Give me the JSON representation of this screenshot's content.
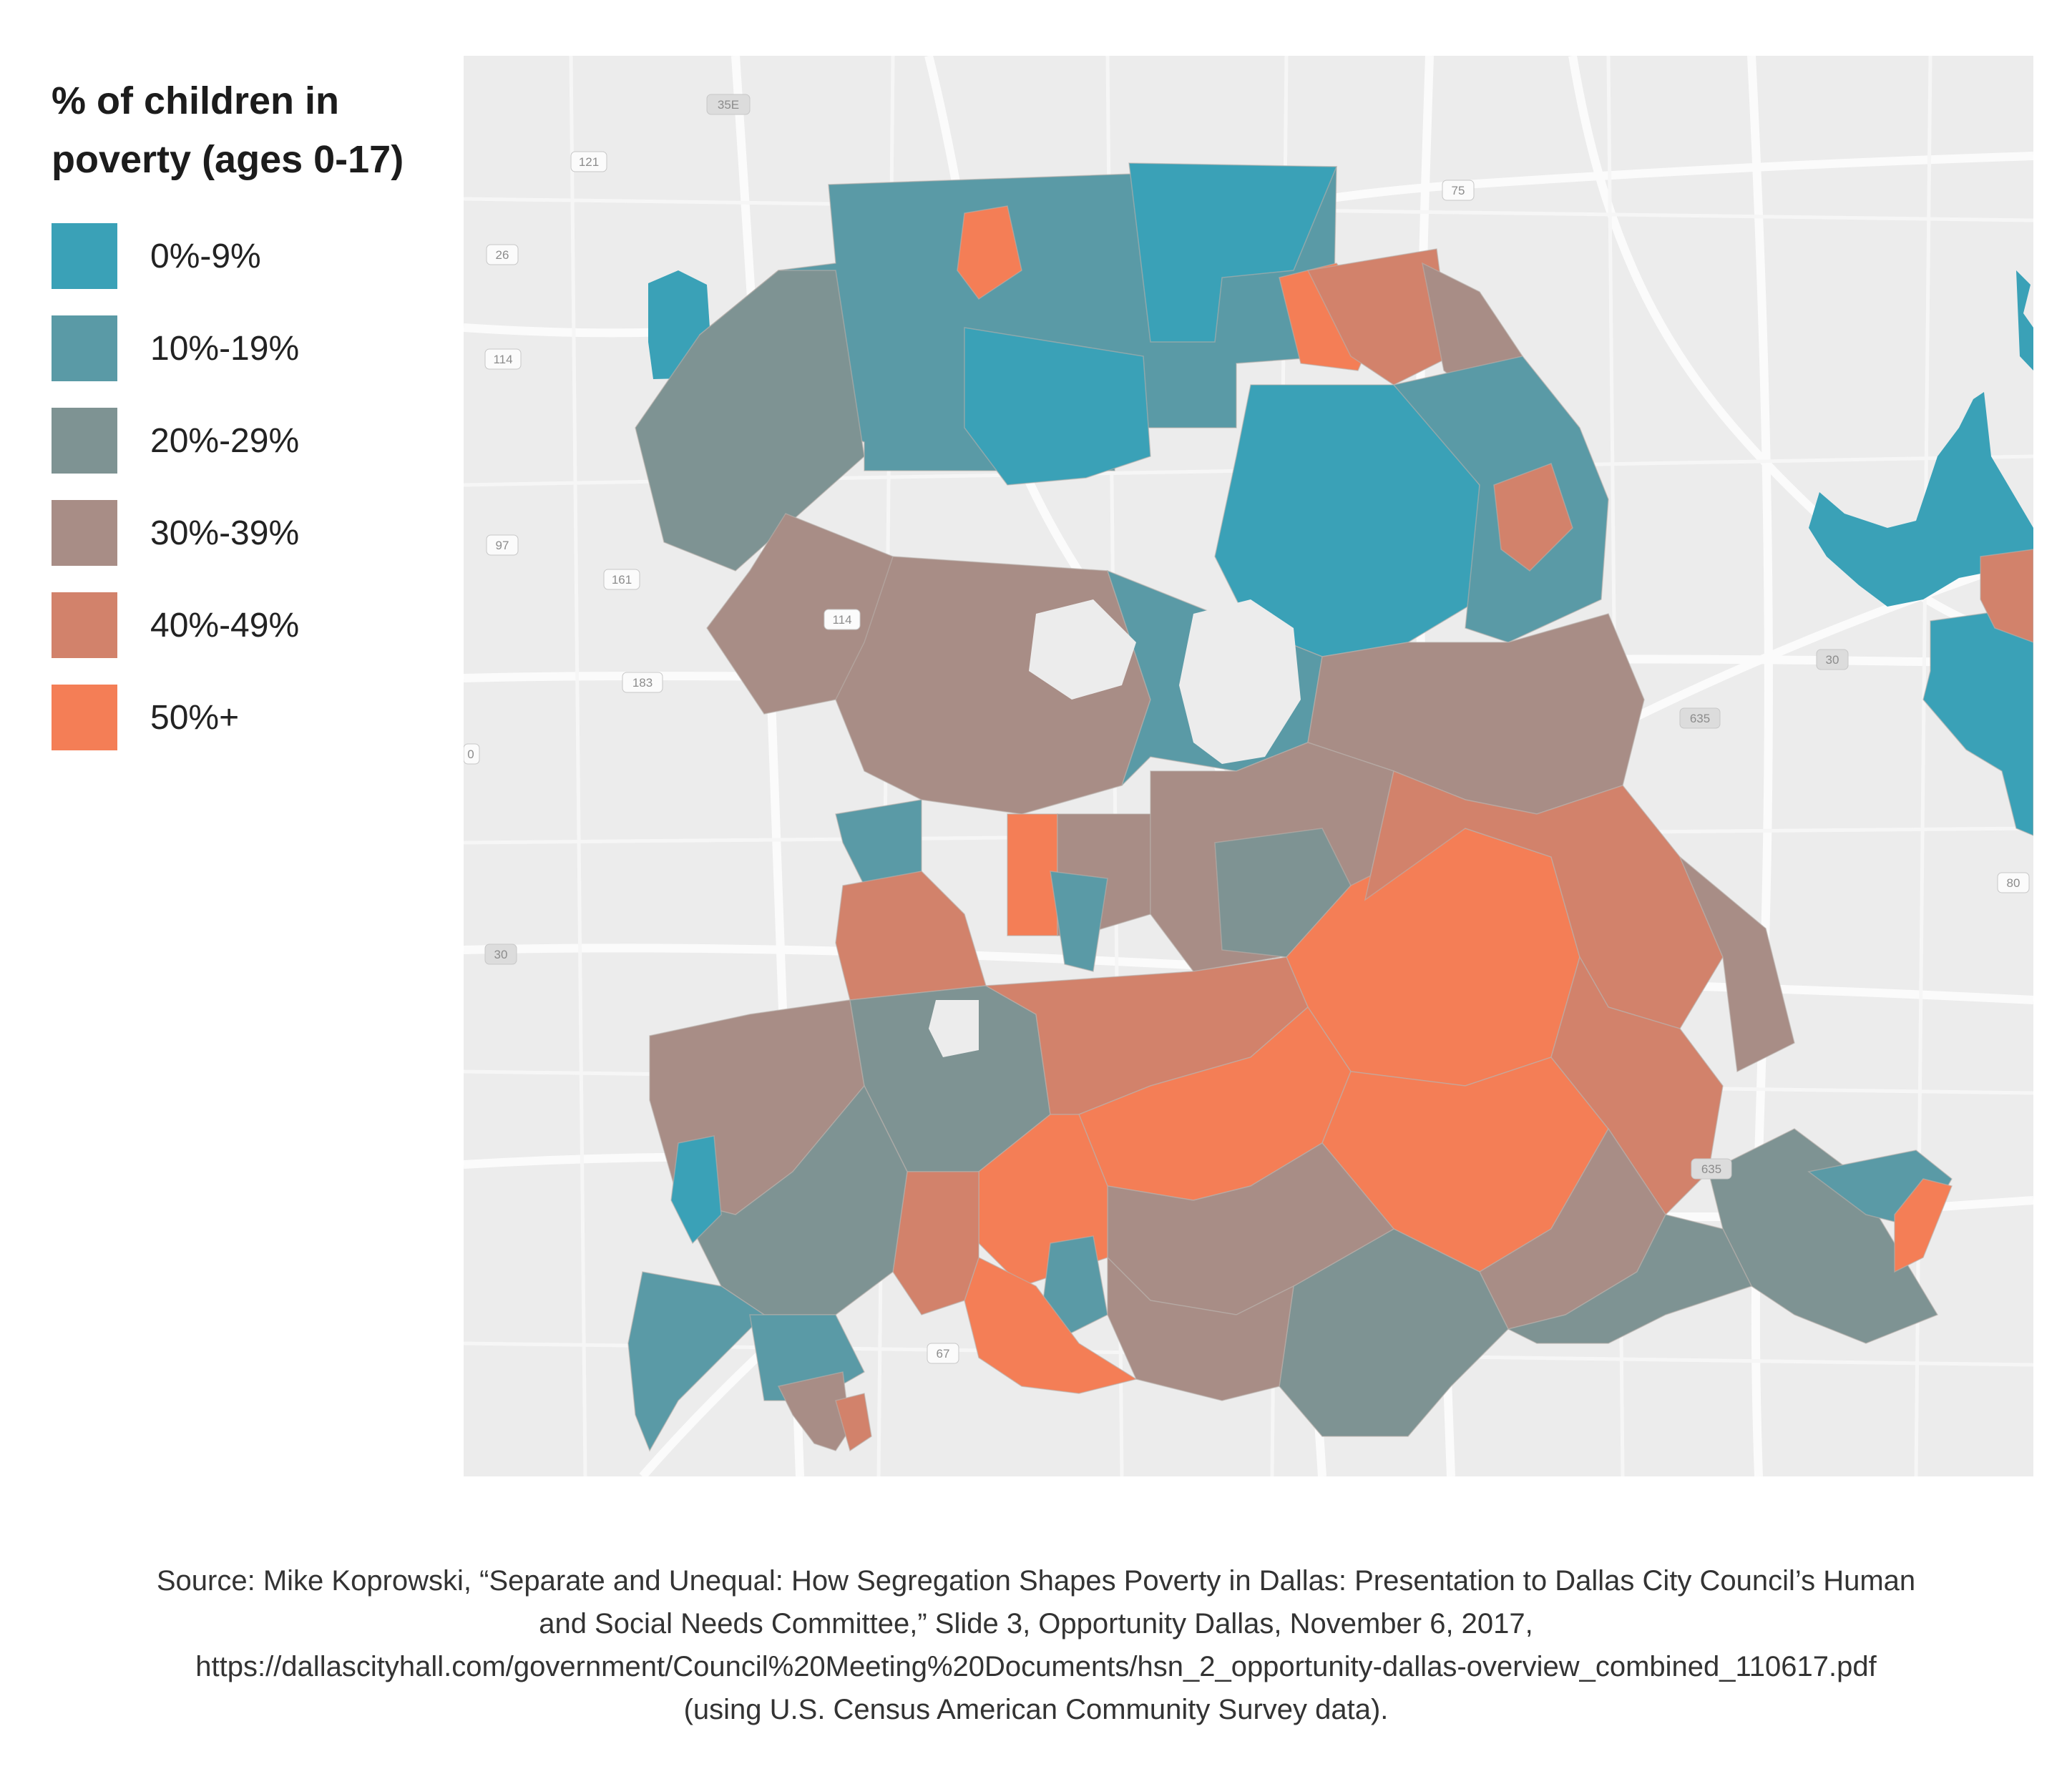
{
  "legend": {
    "title_line1": "% of children in",
    "title_line2": "poverty (ages 0-17)",
    "items": [
      {
        "label": "0%-9%",
        "color": "#3aa1b7"
      },
      {
        "label": "10%-19%",
        "color": "#5a9aa6"
      },
      {
        "label": "20%-29%",
        "color": "#7e9393"
      },
      {
        "label": "30%-39%",
        "color": "#a88d86"
      },
      {
        "label": "40%-49%",
        "color": "#d2826b"
      },
      {
        "label": "50%+",
        "color": "#f47e56"
      }
    ]
  },
  "map": {
    "background_color": "#ececec",
    "road_color": "#ffffff",
    "water_color": "#3aa1b7",
    "highway_shields": [
      "35E",
      "121",
      "75",
      "26",
      "114",
      "97",
      "161",
      "114",
      "183",
      "30",
      "635",
      "30",
      "80",
      "635",
      "67",
      "0"
    ]
  },
  "source": {
    "line1": "Source: Mike Koprowski, “Separate and Unequal: How Segregation Shapes Poverty in Dallas: Presentation to Dallas City Council’s Human",
    "line2": "and Social Needs Committee,” Slide 3, Opportunity Dallas, November 6, 2017,",
    "line3": "https://dallascityhall.com/government/Council%20Meeting%20Documents/hsn_2_opportunity-dallas-overview_combined_110617.pdf",
    "line4": "(using U.S. Census American Community Survey data)."
  }
}
